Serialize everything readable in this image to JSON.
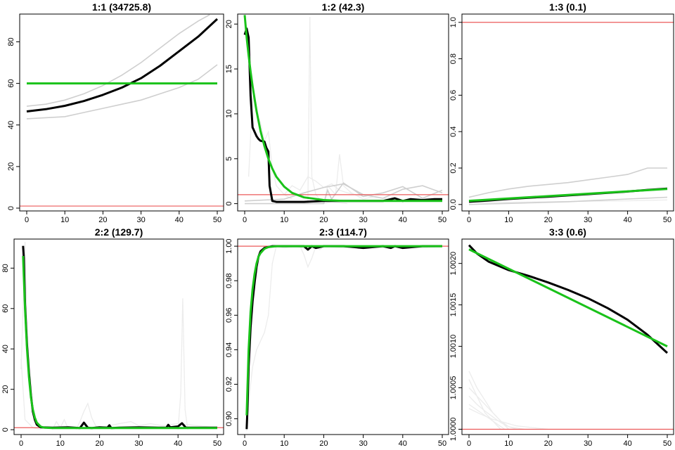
{
  "colors": {
    "mean_line": "#000000",
    "fit_line": "#19c219",
    "reference_line": "#ec5a5a",
    "sample_lines": "#cfcfcf",
    "faint_lines": "#ececec",
    "frame": "#000000"
  },
  "chart_data": [
    {
      "type": "line",
      "title": "1:1 (34725.8)",
      "xlim": [
        0,
        50
      ],
      "ylim": [
        0,
        92
      ],
      "x_ticks": [
        0,
        10,
        20,
        30,
        40,
        50
      ],
      "y_ticks": [
        0,
        20,
        40,
        60,
        80
      ],
      "reference_y": 1,
      "fit": {
        "x": [
          0,
          50
        ],
        "y": [
          60,
          60
        ]
      },
      "mean": {
        "x": [
          0,
          5,
          10,
          15,
          20,
          25,
          30,
          35,
          40,
          45,
          50
        ],
        "y": [
          46.5,
          47.6,
          49.2,
          51.5,
          54.5,
          58,
          62.5,
          68.5,
          75.5,
          82.5,
          91
        ]
      },
      "samples": [
        {
          "x": [
            0,
            5,
            10,
            15,
            20,
            25,
            30,
            35,
            40,
            45,
            48
          ],
          "y": [
            49,
            50,
            52,
            55,
            59,
            64,
            70,
            77,
            84,
            90,
            93
          ]
        },
        {
          "x": [
            0,
            5,
            10,
            15,
            20,
            25,
            30,
            35,
            40,
            45,
            50
          ],
          "y": [
            43,
            43.5,
            44,
            46,
            48,
            50,
            52,
            55,
            58,
            62,
            69
          ]
        }
      ],
      "faint": []
    },
    {
      "type": "line",
      "title": "1:2 (42.3)",
      "xlim": [
        0,
        50
      ],
      "ylim": [
        -0.5,
        20.8
      ],
      "x_ticks": [
        0,
        10,
        20,
        30,
        40,
        50
      ],
      "y_ticks": [
        0,
        5,
        10,
        15,
        20
      ],
      "reference_y": 1,
      "fit": {
        "x": [
          0,
          0.5,
          1,
          1.5,
          2,
          3,
          4,
          5,
          6,
          7,
          8,
          10,
          12,
          15,
          20,
          25,
          30,
          40,
          50
        ],
        "y": [
          21,
          18.5,
          16.5,
          14.7,
          13.1,
          10.3,
          8.1,
          6.4,
          5.0,
          3.9,
          3.0,
          1.9,
          1.2,
          0.7,
          0.4,
          0.3,
          0.3,
          0.3,
          0.3
        ]
      },
      "mean": {
        "x": [
          0,
          0.5,
          1,
          1.5,
          2,
          3,
          3.5,
          4,
          5,
          5.5,
          6,
          6.3,
          7,
          8,
          10,
          15,
          20,
          25,
          30,
          35,
          38,
          40,
          42,
          45,
          48,
          50
        ],
        "y": [
          18.8,
          19.5,
          18.5,
          12,
          8.5,
          7.5,
          7.2,
          7.0,
          6.9,
          6.2,
          5.8,
          2,
          0.3,
          0.2,
          0.2,
          0.2,
          0.3,
          0.3,
          0.3,
          0.3,
          0.6,
          0.3,
          0.5,
          0.4,
          0.5,
          0.5
        ]
      },
      "samples": [
        {
          "x": [
            0,
            10,
            15,
            20,
            25,
            30,
            35,
            40,
            45,
            50
          ],
          "y": [
            0.3,
            0.5,
            1.2,
            1.8,
            2.2,
            1.0,
            0.6,
            1.6,
            2.0,
            1.2
          ]
        },
        {
          "x": [
            0,
            20,
            21,
            22,
            25,
            30,
            35,
            40,
            45,
            50
          ],
          "y": [
            0,
            0,
            1.5,
            0.5,
            2.3,
            0.8,
            1.2,
            1.9,
            0.6,
            1.5
          ]
        }
      ],
      "faint": [
        {
          "x": [
            1,
            2,
            3,
            4,
            5,
            6,
            7,
            8,
            10,
            12
          ],
          "y": [
            3,
            12,
            10,
            9,
            7,
            8,
            4,
            2,
            1,
            0.5
          ]
        },
        {
          "x": [
            16,
            16.5,
            17,
            18,
            19,
            20,
            22,
            24,
            26
          ],
          "y": [
            0,
            20.8,
            3,
            1,
            0.5,
            0,
            0.2,
            0.1,
            0
          ]
        },
        {
          "x": [
            10,
            12,
            14,
            16,
            18,
            20,
            22,
            24,
            26,
            28,
            30
          ],
          "y": [
            1,
            2,
            1.5,
            3,
            2.5,
            1.8,
            2.2,
            1.5,
            1.2,
            1.0,
            0.8
          ]
        },
        {
          "x": [
            20,
            21,
            23,
            24,
            25,
            27,
            30,
            33,
            36,
            40
          ],
          "y": [
            0,
            2,
            1,
            5.5,
            2,
            1.2,
            0.5,
            0.8,
            0.5,
            0.3
          ]
        }
      ]
    },
    {
      "type": "line",
      "title": "1:3 (0.1)",
      "xlim": [
        0,
        50
      ],
      "ylim": [
        -0.02,
        1.03
      ],
      "x_ticks": [
        0,
        10,
        20,
        30,
        40,
        50
      ],
      "y_ticks": [
        0.0,
        0.2,
        0.4,
        0.6,
        0.8,
        1.0
      ],
      "y_tick_labels": [
        "0.0",
        "0.2",
        "0.4",
        "0.6",
        "0.8",
        "1.0"
      ],
      "reference_y": 1.0,
      "fit": {
        "x": [
          0,
          50
        ],
        "y": [
          0.02,
          0.085
        ]
      },
      "mean": {
        "x": [
          0,
          5,
          10,
          15,
          20,
          25,
          30,
          35,
          40,
          45,
          50
        ],
        "y": [
          0.015,
          0.022,
          0.03,
          0.037,
          0.043,
          0.05,
          0.057,
          0.064,
          0.071,
          0.08,
          0.087
        ]
      },
      "samples": [
        {
          "x": [
            0,
            5,
            10,
            15,
            20,
            25,
            30,
            35,
            40,
            45,
            50
          ],
          "y": [
            0.04,
            0.065,
            0.085,
            0.1,
            0.11,
            0.12,
            0.135,
            0.15,
            0.165,
            0.2,
            0.2
          ]
        },
        {
          "x": [
            0,
            5,
            10,
            15,
            20,
            25,
            30,
            35,
            40,
            45,
            50
          ],
          "y": [
            0.0,
            0.003,
            0.006,
            0.009,
            0.012,
            0.015,
            0.02,
            0.025,
            0.03,
            0.035,
            0.04
          ]
        }
      ],
      "faint": [
        {
          "x": [
            0,
            10,
            20,
            30,
            40,
            50
          ],
          "y": [
            0.01,
            0.012,
            0.015,
            0.018,
            0.02,
            0.025
          ]
        }
      ]
    },
    {
      "type": "line",
      "title": "2:2 (129.7)",
      "xlim": [
        0,
        50
      ],
      "ylim": [
        -1,
        93
      ],
      "x_ticks": [
        0,
        10,
        20,
        30,
        40,
        50
      ],
      "y_ticks": [
        0,
        20,
        40,
        60,
        80
      ],
      "reference_y": 1,
      "fit": {
        "x": [
          0.5,
          0.8,
          1,
          1.5,
          2,
          2.5,
          3,
          3.5,
          4,
          5,
          6,
          8,
          10,
          20,
          30,
          40,
          50
        ],
        "y": [
          86,
          70,
          60,
          40,
          26,
          16,
          10,
          6,
          3.5,
          1.5,
          1.0,
          0.8,
          0.8,
          0.8,
          0.8,
          0.8,
          0.8
        ]
      },
      "mean": {
        "x": [
          0.5,
          0.7,
          1,
          1.5,
          2,
          2.5,
          3,
          3.5,
          4,
          5,
          8,
          12,
          15,
          16,
          17,
          18,
          20,
          22,
          22.5,
          23,
          25,
          30,
          35,
          37,
          37.5,
          38,
          40,
          41,
          42,
          45,
          50
        ],
        "y": [
          91,
          85,
          62,
          42,
          28,
          17,
          9,
          5,
          2.5,
          1.2,
          1.0,
          1.2,
          0.8,
          3.5,
          1.0,
          0.8,
          1.2,
          1.0,
          2.2,
          0.8,
          1.0,
          1.2,
          1.0,
          1.0,
          2.4,
          1.2,
          1.6,
          3.2,
          1.0,
          1.0,
          1.0
        ]
      },
      "samples": [],
      "faint": [
        {
          "x": [
            0,
            1,
            1.5,
            2,
            3,
            4,
            5,
            6
          ],
          "y": [
            30,
            93,
            50,
            35,
            10,
            4,
            2,
            1
          ]
        },
        {
          "x": [
            0,
            0.5,
            1,
            2,
            3,
            4,
            5
          ],
          "y": [
            35,
            20,
            5,
            3,
            1,
            0.5,
            0.2
          ]
        },
        {
          "x": [
            14,
            15,
            16,
            17,
            18,
            19,
            20
          ],
          "y": [
            0,
            4,
            9,
            13,
            6,
            2,
            0.5
          ]
        },
        {
          "x": [
            8,
            9,
            10,
            11,
            12
          ],
          "y": [
            0,
            4,
            1,
            5,
            0.5
          ]
        },
        {
          "x": [
            40,
            40.7,
            41.2,
            41.8,
            42.5
          ],
          "y": [
            0,
            18,
            65,
            10,
            0
          ]
        },
        {
          "x": [
            20,
            25,
            28,
            30,
            33,
            36,
            40,
            45,
            50
          ],
          "y": [
            1,
            3,
            4,
            2,
            3,
            2,
            3,
            2,
            1
          ]
        }
      ]
    },
    {
      "type": "line",
      "title": "2:3 (114.7)",
      "xlim": [
        0,
        50
      ],
      "ylim": [
        0.8925,
        1.0025
      ],
      "x_ticks": [
        0,
        10,
        20,
        30,
        40,
        50
      ],
      "y_ticks": [
        0.9,
        0.92,
        0.94,
        0.96,
        0.98,
        1.0
      ],
      "y_tick_labels": [
        "0.90",
        "0.92",
        "0.94",
        "0.96",
        "0.98",
        "1.00"
      ],
      "reference_y": 1.0,
      "fit": {
        "x": [
          0.5,
          0.8,
          1,
          1.5,
          2,
          2.5,
          3,
          3.5,
          4,
          5,
          6,
          8,
          10,
          20,
          30,
          40,
          50
        ],
        "y": [
          0.902,
          0.925,
          0.94,
          0.962,
          0.975,
          0.984,
          0.99,
          0.994,
          0.996,
          0.9985,
          0.9995,
          1.0,
          1.0,
          1.0,
          1.0,
          1.0,
          1.0
        ]
      },
      "mean": {
        "x": [
          0.5,
          0.7,
          1,
          1.5,
          2,
          2.5,
          3,
          3.5,
          4,
          5,
          7,
          10,
          15,
          16,
          17,
          18,
          20,
          25,
          30,
          35,
          37,
          38,
          40,
          45,
          50
        ],
        "y": [
          0.894,
          0.905,
          0.93,
          0.953,
          0.968,
          0.979,
          0.988,
          0.994,
          0.997,
          0.999,
          1.0,
          1.0,
          1.0,
          0.998,
          1.0,
          0.999,
          1.0,
          1.0,
          0.999,
          1.0,
          0.999,
          1.0,
          0.999,
          1.0,
          1.0
        ]
      },
      "samples": [],
      "faint": [
        {
          "x": [
            0.5,
            1,
            2,
            3,
            4,
            5,
            6,
            7,
            8
          ],
          "y": [
            0.893,
            0.91,
            0.93,
            0.94,
            0.945,
            0.95,
            0.96,
            0.99,
            1.0
          ]
        },
        {
          "x": [
            14,
            15,
            16,
            17,
            18,
            19,
            20
          ],
          "y": [
            1.0,
            0.995,
            0.988,
            0.993,
            1.0,
            0.998,
            1.0
          ]
        },
        {
          "x": [
            8,
            10,
            13,
            16,
            20,
            25,
            30,
            35,
            40,
            45,
            50
          ],
          "y": [
            1.0,
            0.999,
            1.0,
            0.998,
            1.0,
            0.999,
            1.0,
            0.999,
            1.0,
            0.999,
            1.0
          ]
        }
      ]
    },
    {
      "type": "line",
      "title": "3:3 (0.6)",
      "xlim": [
        0,
        50
      ],
      "ylim": [
        0.99997,
        1.00226
      ],
      "x_ticks": [
        0,
        10,
        20,
        30,
        40,
        50
      ],
      "y_ticks": [
        1.0,
        1.0005,
        1.001,
        1.0015,
        1.002
      ],
      "y_tick_labels": [
        "1.0000",
        "1.0005",
        "1.0010",
        "1.0015",
        "1.0020"
      ],
      "reference_y": 1.0,
      "fit": {
        "x": [
          0,
          50
        ],
        "y": [
          1.00217,
          1.001
        ]
      },
      "mean": {
        "x": [
          0,
          2,
          5,
          10,
          15,
          20,
          25,
          30,
          35,
          40,
          45,
          50
        ],
        "y": [
          1.00222,
          1.00212,
          1.00202,
          1.00192,
          1.00185,
          1.00177,
          1.00168,
          1.00158,
          1.00146,
          1.00132,
          1.00114,
          1.00092
        ]
      },
      "samples": [],
      "faint": [
        {
          "x": [
            0,
            2,
            4,
            6,
            8,
            10,
            12
          ],
          "y": [
            1.0007,
            1.0005,
            1.00035,
            1.0002,
            1.0001,
            1.00003,
            1.0
          ]
        },
        {
          "x": [
            0,
            2,
            4,
            6,
            8,
            10
          ],
          "y": [
            1.0006,
            1.0004,
            1.0003,
            1.0002,
            1.0001,
            1.0
          ]
        },
        {
          "x": [
            0,
            2,
            4,
            6,
            8
          ],
          "y": [
            1.0005,
            1.0004,
            1.0002,
            1.0001,
            1.0
          ]
        },
        {
          "x": [
            0,
            2,
            4,
            6,
            8,
            10,
            14
          ],
          "y": [
            1.0004,
            1.0003,
            1.00022,
            1.00015,
            1.00008,
            1.00003,
            1.0
          ]
        },
        {
          "x": [
            0,
            3,
            6,
            9
          ],
          "y": [
            1.0003,
            1.0002,
            1.0001,
            1.0
          ]
        },
        {
          "x": [
            0,
            3,
            6,
            9,
            12,
            16,
            20
          ],
          "y": [
            1.00025,
            1.00018,
            1.00012,
            1.00008,
            1.00004,
            1.00002,
            1.0
          ]
        }
      ]
    }
  ]
}
